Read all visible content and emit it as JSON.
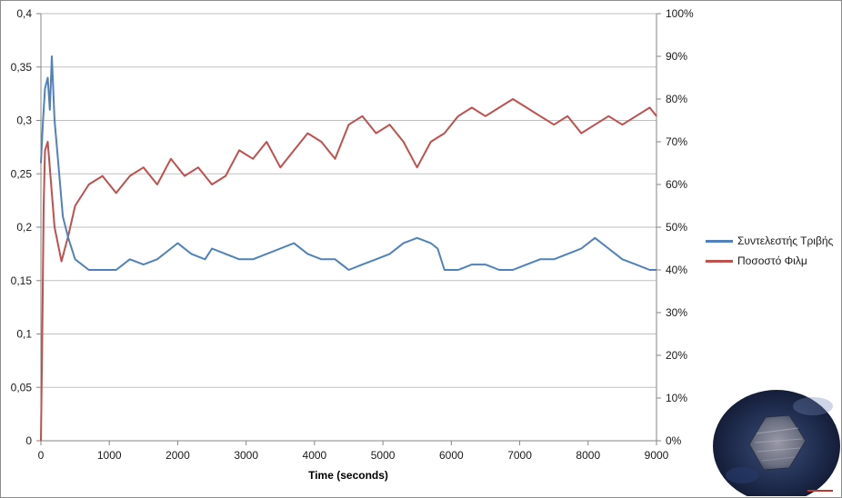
{
  "chart_data": {
    "type": "line",
    "title": "",
    "xlabel": "Time (seconds)",
    "ylabel_left": "",
    "ylabel_right": "",
    "xlim": [
      0,
      9000
    ],
    "ylim_left": [
      0,
      0.4
    ],
    "ylim_right": [
      0,
      1.0
    ],
    "x_ticks": [
      "0",
      "1000",
      "2000",
      "3000",
      "4000",
      "5000",
      "6000",
      "7000",
      "8000",
      "9000"
    ],
    "y_left_ticks": [
      "0",
      "0,05",
      "0,1",
      "0,15",
      "0,2",
      "0,25",
      "0,3",
      "0,35",
      "0,4"
    ],
    "y_right_ticks": [
      "0%",
      "10%",
      "20%",
      "30%",
      "40%",
      "50%",
      "60%",
      "70%",
      "80%",
      "90%",
      "100%"
    ],
    "grid": "horizontal",
    "legend_position": "right",
    "series": [
      {
        "name": "Συντελεστής Τριβής",
        "axis": "left",
        "color": "#4f81bd",
        "x": [
          0,
          30,
          60,
          100,
          130,
          160,
          200,
          240,
          280,
          320,
          400,
          500,
          700,
          900,
          1100,
          1300,
          1500,
          1700,
          1900,
          2000,
          2200,
          2400,
          2500,
          2700,
          2900,
          3100,
          3300,
          3500,
          3700,
          3900,
          4100,
          4300,
          4500,
          4700,
          4900,
          5100,
          5300,
          5500,
          5700,
          5800,
          5900,
          6100,
          6300,
          6500,
          6700,
          6900,
          7100,
          7300,
          7500,
          7700,
          7900,
          8100,
          8300,
          8500,
          8700,
          8900,
          9000
        ],
        "y": [
          0.26,
          0.3,
          0.33,
          0.34,
          0.31,
          0.36,
          0.3,
          0.27,
          0.24,
          0.21,
          0.19,
          0.17,
          0.16,
          0.16,
          0.16,
          0.17,
          0.165,
          0.17,
          0.18,
          0.185,
          0.175,
          0.17,
          0.18,
          0.175,
          0.17,
          0.17,
          0.175,
          0.18,
          0.185,
          0.175,
          0.17,
          0.17,
          0.16,
          0.165,
          0.17,
          0.175,
          0.185,
          0.19,
          0.185,
          0.18,
          0.16,
          0.16,
          0.165,
          0.165,
          0.16,
          0.16,
          0.165,
          0.17,
          0.17,
          0.175,
          0.18,
          0.19,
          0.18,
          0.17,
          0.165,
          0.16,
          0.16
        ]
      },
      {
        "name": "Ποσοστό Φιλμ",
        "axis": "right",
        "color": "#c0504d",
        "x": [
          0,
          20,
          40,
          60,
          100,
          200,
          300,
          400,
          500,
          700,
          900,
          1100,
          1300,
          1500,
          1700,
          1900,
          2100,
          2300,
          2500,
          2700,
          2900,
          3100,
          3300,
          3500,
          3700,
          3900,
          4100,
          4300,
          4500,
          4700,
          4900,
          5100,
          5300,
          5500,
          5700,
          5900,
          6100,
          6300,
          6500,
          6700,
          6900,
          7100,
          7300,
          7500,
          7700,
          7900,
          8100,
          8300,
          8500,
          8700,
          8900,
          9000
        ],
        "y": [
          0.0,
          0.25,
          0.55,
          0.68,
          0.7,
          0.5,
          0.42,
          0.48,
          0.55,
          0.6,
          0.62,
          0.58,
          0.62,
          0.64,
          0.6,
          0.66,
          0.62,
          0.64,
          0.6,
          0.62,
          0.68,
          0.66,
          0.7,
          0.64,
          0.68,
          0.72,
          0.7,
          0.66,
          0.74,
          0.76,
          0.72,
          0.74,
          0.7,
          0.64,
          0.7,
          0.72,
          0.76,
          0.78,
          0.76,
          0.78,
          0.8,
          0.78,
          0.76,
          0.74,
          0.76,
          0.72,
          0.74,
          0.76,
          0.74,
          0.76,
          0.78,
          0.76
        ]
      }
    ]
  }
}
